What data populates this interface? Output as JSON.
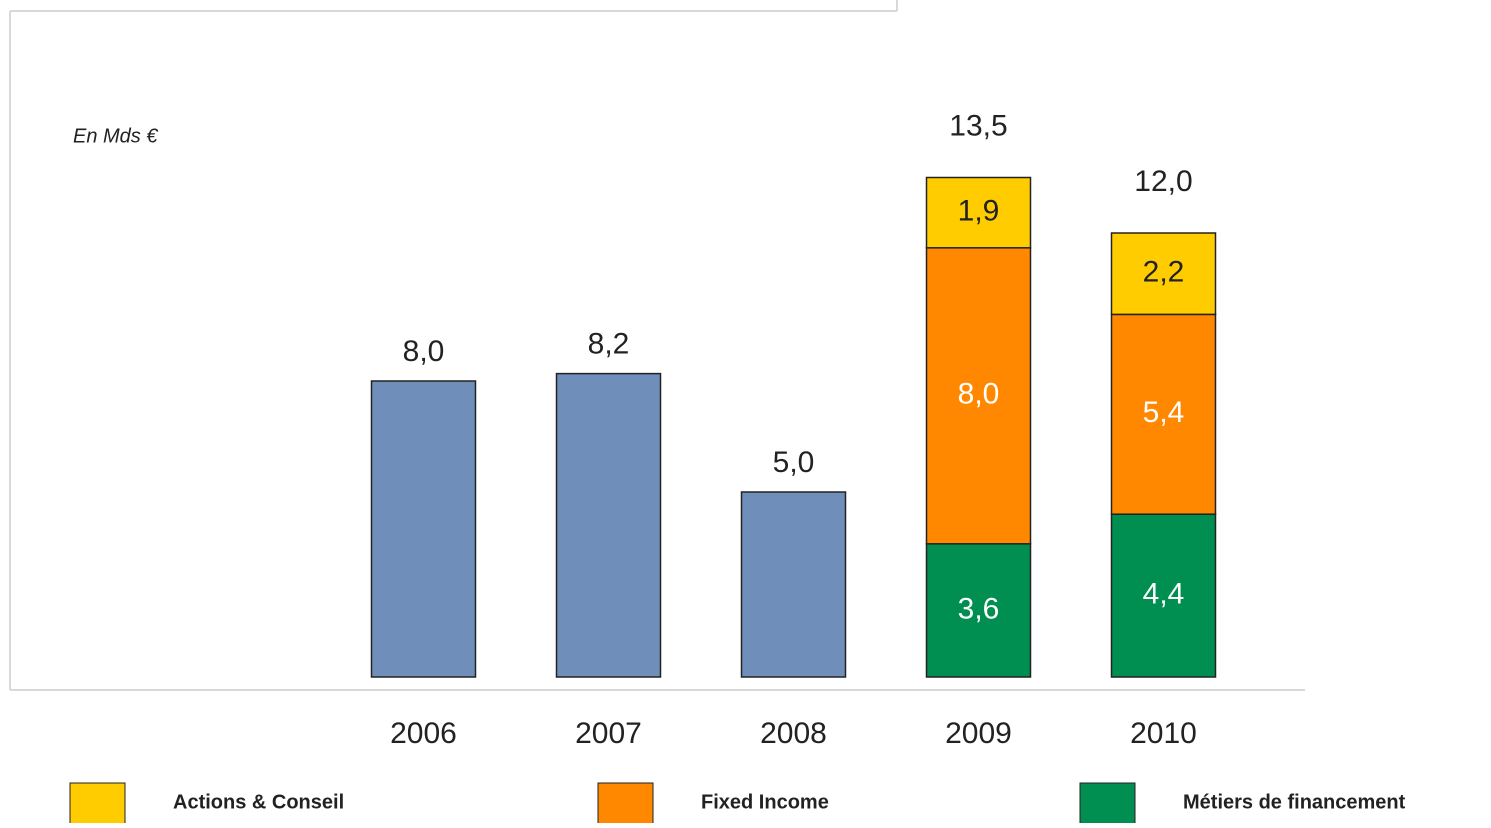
{
  "chart_data": {
    "type": "bar",
    "stacked": true,
    "subtitle": "En Mds €",
    "categories": [
      "2006",
      "2007",
      "2008",
      "2009",
      "2010"
    ],
    "base_series": {
      "color": "#6f8fba",
      "values": [
        8.0,
        8.2,
        5.0,
        null,
        null
      ],
      "value_labels": [
        "8,0",
        "8,2",
        "5,0",
        null,
        null
      ]
    },
    "series": [
      {
        "name": "Actions & Conseil",
        "color": "#ffcc00",
        "label_color": "#222222",
        "values": [
          null,
          null,
          null,
          1.9,
          2.2
        ],
        "value_labels": [
          null,
          null,
          null,
          "1,9",
          "2,2"
        ]
      },
      {
        "name": "Fixed Income",
        "color": "#ff8800",
        "label_color": "#ffffff",
        "values": [
          null,
          null,
          null,
          8.0,
          5.4
        ],
        "value_labels": [
          null,
          null,
          null,
          "8,0",
          "5,4"
        ]
      },
      {
        "name": "Métiers de financement",
        "color": "#008f50",
        "label_color": "#ffffff",
        "values": [
          null,
          null,
          null,
          3.6,
          4.4
        ],
        "value_labels": [
          null,
          null,
          null,
          "3,6",
          "4,4"
        ]
      }
    ],
    "totals": [
      null,
      null,
      null,
      13.5,
      12.0
    ],
    "total_labels": [
      null,
      null,
      null,
      "13,5",
      "12,0"
    ],
    "ylim": [
      0,
      18
    ]
  }
}
